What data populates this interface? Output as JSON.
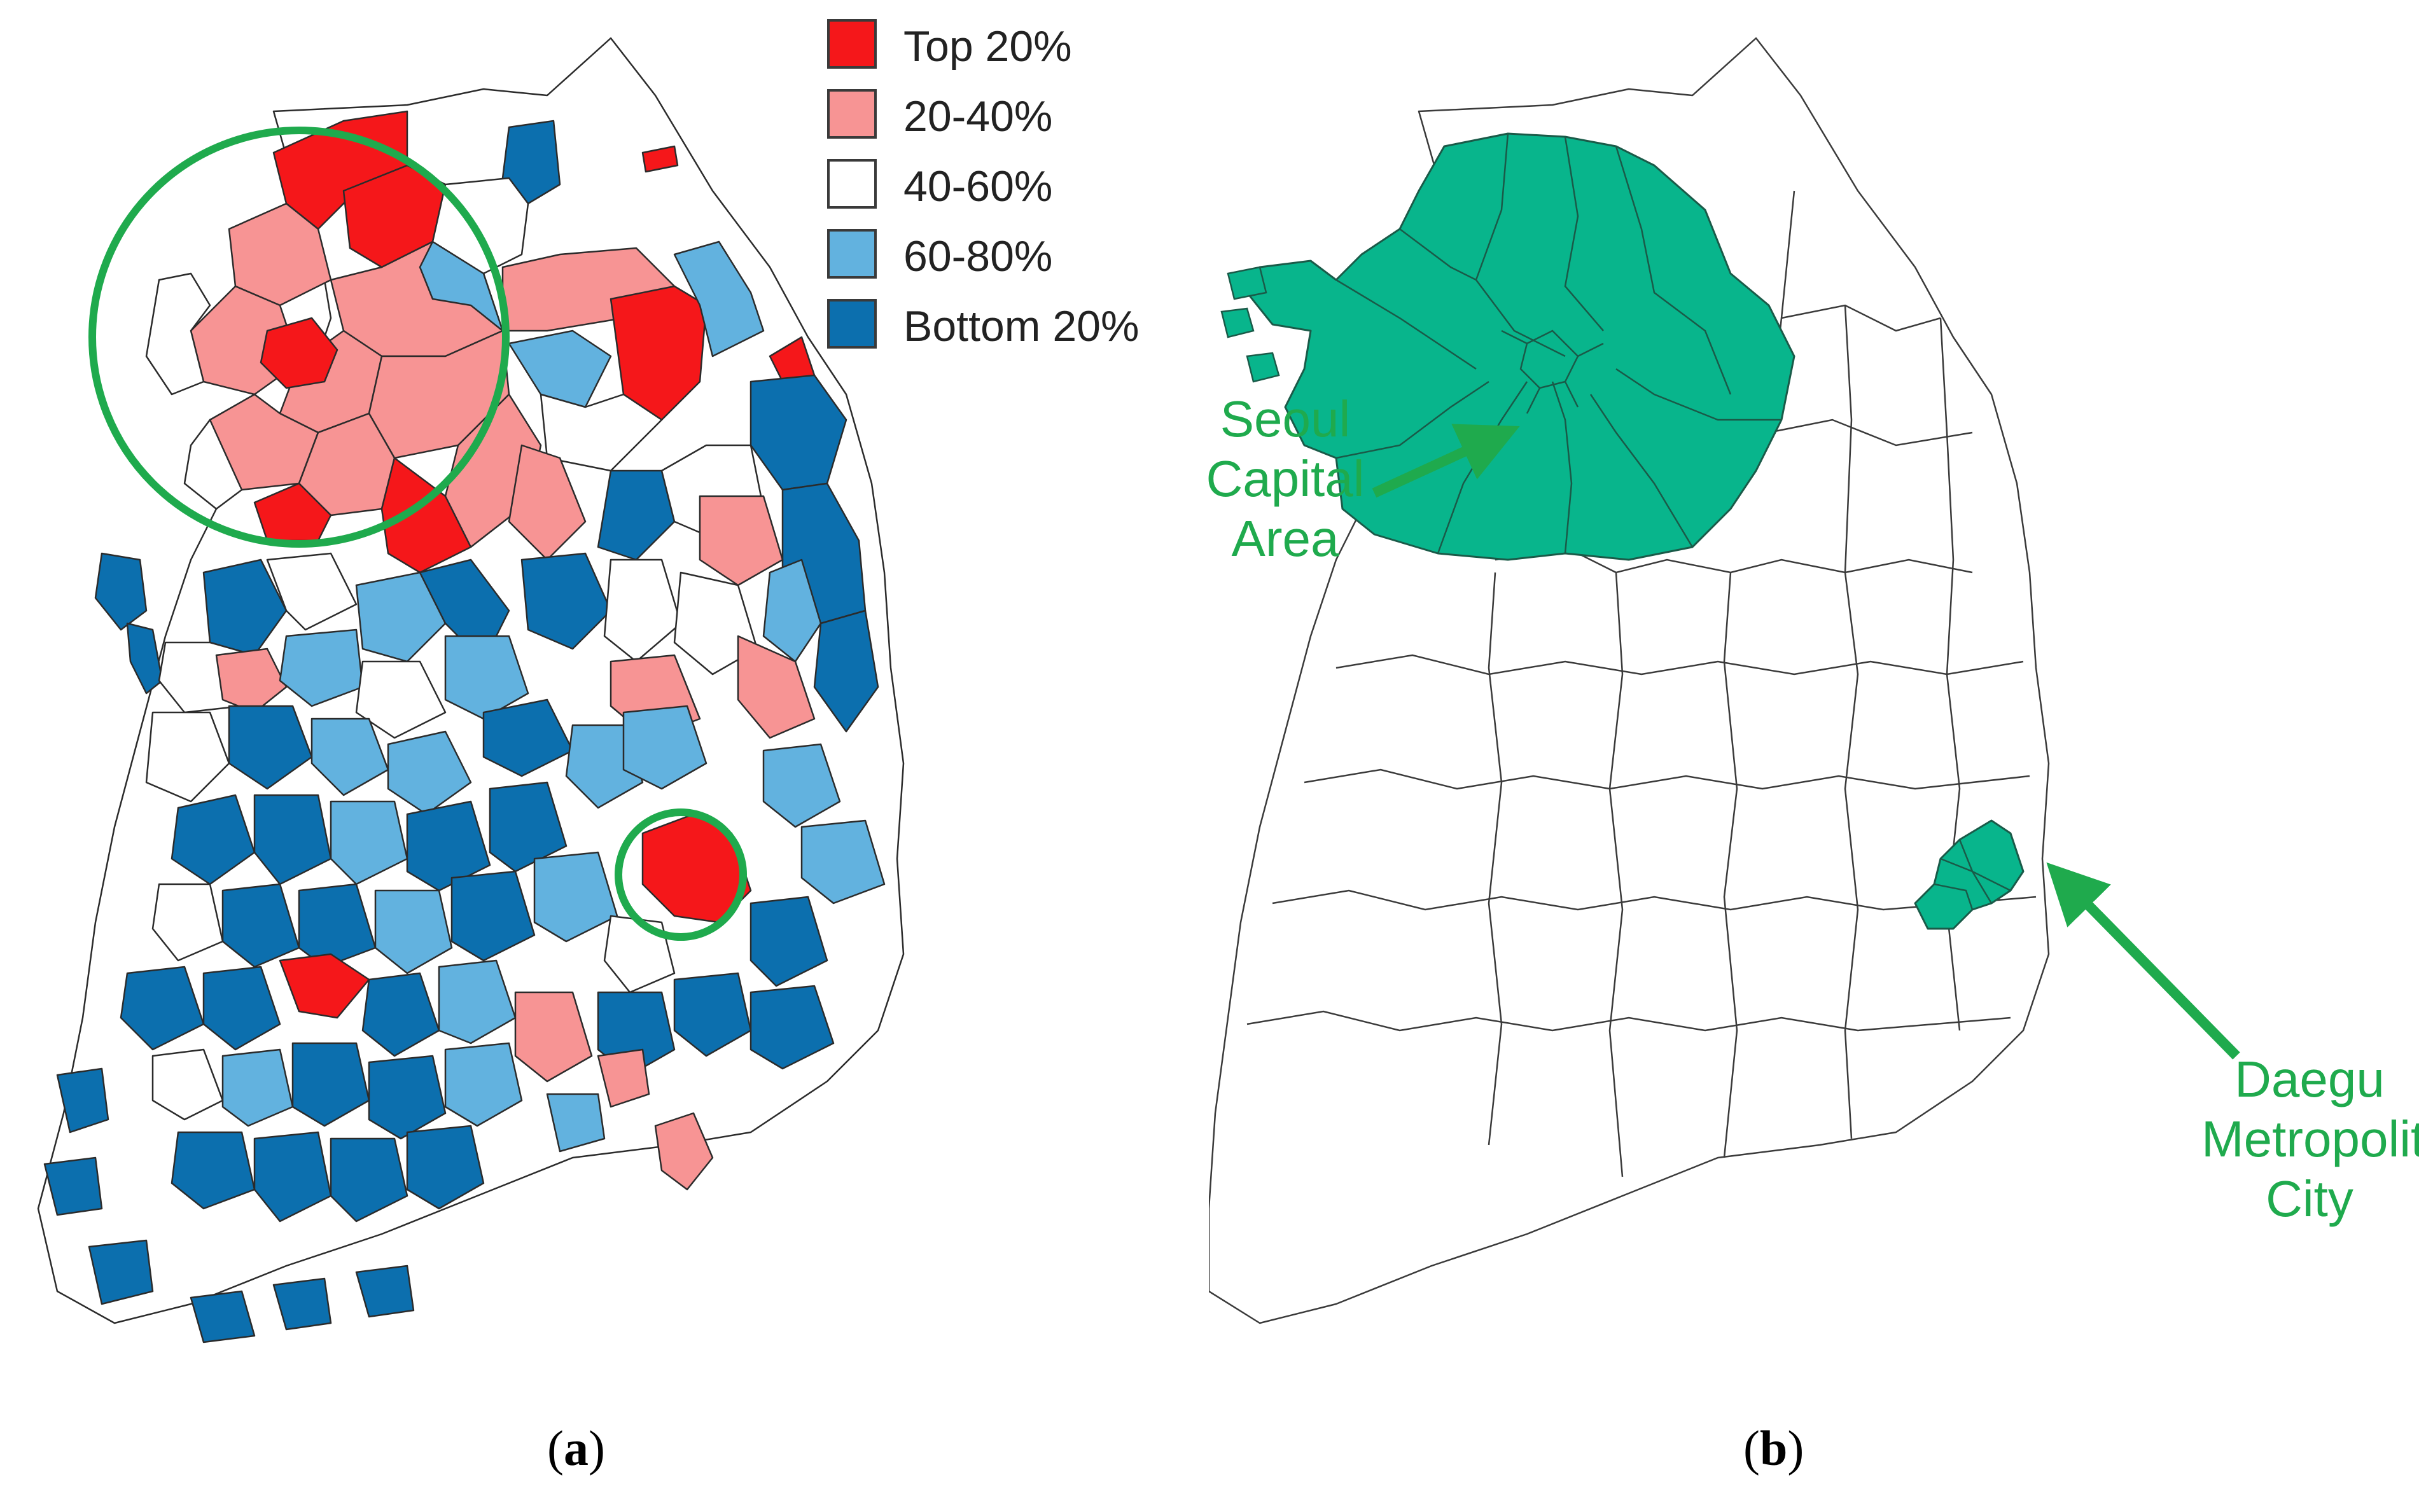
{
  "panel_a": {
    "caption": {
      "open": "(",
      "letter": "a",
      "close": ")"
    },
    "legend": [
      {
        "label": "Top 20%",
        "color": "#f5171a"
      },
      {
        "label": "20-40%",
        "color": "#f79494"
      },
      {
        "label": "40-60%",
        "color": "#ffffff"
      },
      {
        "label": "60-80%",
        "color": "#62b2df"
      },
      {
        "label": "Bottom 20%",
        "color": "#0c6fae"
      }
    ],
    "highlight_color": "#1faa4d"
  },
  "panel_b": {
    "caption": {
      "open": "(",
      "letter": "b",
      "close": ")"
    },
    "highlight_fill": "#08b58c",
    "annotations": {
      "seoul": [
        "Seoul",
        "Capital",
        "Area"
      ],
      "daegu": [
        "Daegu",
        "Metropolitan",
        "City"
      ]
    },
    "arrow_color": "#1faa4d"
  }
}
